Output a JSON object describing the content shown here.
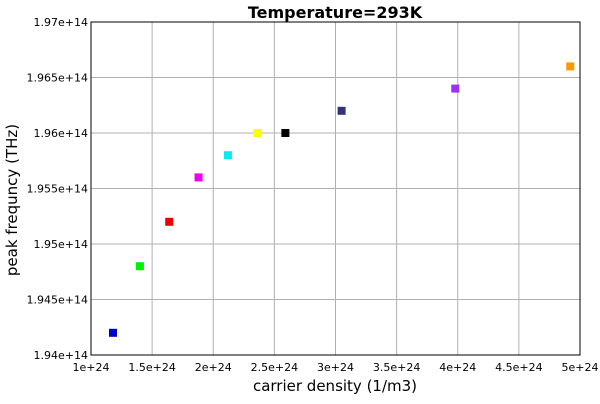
{
  "chart_data": {
    "type": "scatter",
    "title": "Temperature=293K",
    "xlabel": "carrier density (1/m3)",
    "ylabel": "peak frequncy (THz)",
    "xlim": [
      1e+24,
      5e+24
    ],
    "ylim": [
      194000000000000.0,
      197000000000000.0
    ],
    "grid": true,
    "x_ticks": [
      1e+24,
      1.5e+24,
      2e+24,
      2.5e+24,
      3e+24,
      3.5e+24,
      4e+24,
      4.5e+24,
      5e+24
    ],
    "x_tick_labels": [
      "1e+24",
      "1.5e+24",
      "2e+24",
      "2.5e+24",
      "3e+24",
      "3.5e+24",
      "4e+24",
      "4.5e+24",
      "5e+24"
    ],
    "y_ticks": [
      194000000000000.0,
      194500000000000.0,
      195000000000000.0,
      195500000000000.0,
      196000000000000.0,
      196500000000000.0,
      197000000000000.0
    ],
    "y_tick_labels": [
      "1.94e+14",
      "1.945e+14",
      "1.95e+14",
      "1.955e+14",
      "1.96e+14",
      "1.965e+14",
      "1.97e+14"
    ],
    "points": [
      {
        "x": 1.18e+24,
        "y": 194200000000000.0,
        "color": "#0000cc"
      },
      {
        "x": 1.4e+24,
        "y": 194800000000000.0,
        "color": "#00ee00"
      },
      {
        "x": 1.64e+24,
        "y": 195200000000000.0,
        "color": "#ee0000"
      },
      {
        "x": 1.88e+24,
        "y": 195600000000000.0,
        "color": "#ee00ee"
      },
      {
        "x": 2.12e+24,
        "y": 195800000000000.0,
        "color": "#00eeee"
      },
      {
        "x": 2.36e+24,
        "y": 196000000000000.0,
        "color": "#ffff00"
      },
      {
        "x": 2.59e+24,
        "y": 196000000000000.0,
        "color": "#000000"
      },
      {
        "x": 3.05e+24,
        "y": 196200000000000.0,
        "color": "#333377"
      },
      {
        "x": 3.98e+24,
        "y": 196400000000000.0,
        "color": "#9933ee"
      },
      {
        "x": 4.92e+24,
        "y": 196600000000000.0,
        "color": "#ff9900"
      }
    ]
  }
}
